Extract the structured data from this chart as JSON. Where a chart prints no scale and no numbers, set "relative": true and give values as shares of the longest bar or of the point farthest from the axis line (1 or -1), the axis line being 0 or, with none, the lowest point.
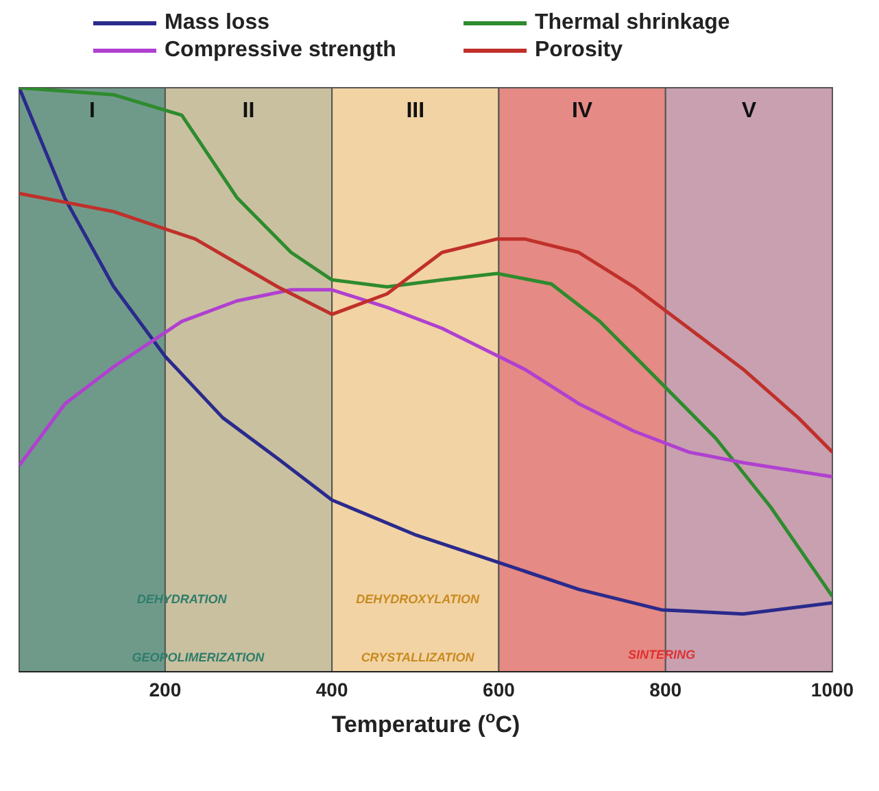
{
  "chart_data": {
    "type": "line",
    "relative": true,
    "xlabel": "Temperature ($^{o}$C)",
    "xlim": [
      25,
      1000
    ],
    "xticks": [
      200,
      400,
      600,
      800,
      1000
    ],
    "legend": "top",
    "marker": "none",
    "line_style": "solid",
    "series": [
      {
        "name": "Mass loss",
        "color": "#2a2a8c",
        "x": [
          25,
          80,
          138,
          200,
          269,
          335,
          400,
          499,
          598,
          696,
          795,
          893,
          1000
        ],
        "values": [
          1.0,
          0.81,
          0.66,
          0.54,
          0.435,
          0.365,
          0.294,
          0.235,
          0.188,
          0.141,
          0.106,
          0.099,
          0.118
        ]
      },
      {
        "name": "Thermal shrinkage",
        "color": "#2e8b2e",
        "x": [
          25,
          138,
          220,
          286,
          351,
          400,
          466,
          532,
          598,
          663,
          721,
          795,
          860,
          926,
          1000
        ],
        "values": [
          1.0,
          0.988,
          0.953,
          0.812,
          0.718,
          0.671,
          0.659,
          0.671,
          0.682,
          0.664,
          0.6,
          0.494,
          0.4,
          0.282,
          0.129
        ]
      },
      {
        "name": "Compressive strength",
        "color": "#b040d0",
        "x": [
          25,
          80,
          138,
          220,
          286,
          351,
          400,
          466,
          532,
          631,
          696,
          762,
          828,
          893,
          1000
        ],
        "values": [
          0.353,
          0.459,
          0.522,
          0.6,
          0.635,
          0.654,
          0.654,
          0.624,
          0.588,
          0.518,
          0.459,
          0.412,
          0.376,
          0.358,
          0.334
        ]
      },
      {
        "name": "Porosity",
        "color": "#c0302a",
        "x": [
          25,
          138,
          236,
          335,
          400,
          466,
          532,
          598,
          631,
          696,
          762,
          828,
          893,
          959,
          1000
        ],
        "values": [
          0.819,
          0.788,
          0.741,
          0.659,
          0.612,
          0.647,
          0.718,
          0.741,
          0.741,
          0.718,
          0.659,
          0.588,
          0.518,
          0.435,
          0.376
        ]
      }
    ],
    "bands": [
      {
        "axis": "x",
        "from": 25,
        "to": 200,
        "label": "I",
        "color": "#6f9a8a"
      },
      {
        "axis": "x",
        "from": 200,
        "to": 400,
        "label": "II",
        "color": "#c9c0a0"
      },
      {
        "axis": "x",
        "from": 400,
        "to": 600,
        "label": "III",
        "color": "#f2d3a4"
      },
      {
        "axis": "x",
        "from": 600,
        "to": 800,
        "label": "IV",
        "color": "#e58a84"
      },
      {
        "axis": "x",
        "from": 800,
        "to": 1000,
        "label": "V",
        "color": "#c8a0b0"
      }
    ],
    "annotations": [
      "DEHYDRATION",
      "GEOPOLIMERIZATION",
      "DEHYDROXYLATION",
      "CRYSTALLIZATION",
      "SINTERING"
    ]
  }
}
